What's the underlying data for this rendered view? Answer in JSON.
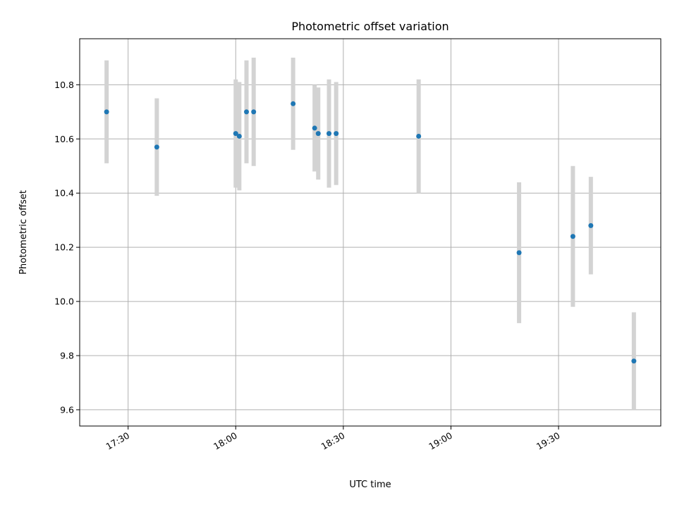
{
  "chart_data": {
    "type": "scatter",
    "title": "Photometric offset variation",
    "xlabel": "UTC time",
    "ylabel": "Photometric offset",
    "x_axis_kind": "time",
    "xlim": [
      "17:16:30",
      "19:58:30"
    ],
    "ylim": [
      9.54,
      10.97
    ],
    "x_ticks": [
      "17:30",
      "18:00",
      "18:30",
      "19:00",
      "19:30"
    ],
    "y_ticks": [
      "9.6",
      "9.8",
      "10.0",
      "10.2",
      "10.4",
      "10.6",
      "10.8"
    ],
    "grid": true,
    "error_bar_color": "#d3d3d3",
    "marker_color": "#1f77b4",
    "points": [
      {
        "t": "17:24",
        "y": 10.7,
        "err": 0.19
      },
      {
        "t": "17:38",
        "y": 10.57,
        "err": 0.18
      },
      {
        "t": "18:00",
        "y": 10.62,
        "err": 0.2
      },
      {
        "t": "18:01",
        "y": 10.61,
        "err": 0.2
      },
      {
        "t": "18:03",
        "y": 10.7,
        "err": 0.19
      },
      {
        "t": "18:05",
        "y": 10.7,
        "err": 0.2
      },
      {
        "t": "18:16",
        "y": 10.73,
        "err": 0.17
      },
      {
        "t": "18:22",
        "y": 10.64,
        "err": 0.16
      },
      {
        "t": "18:23",
        "y": 10.62,
        "err": 0.17
      },
      {
        "t": "18:26",
        "y": 10.62,
        "err": 0.2
      },
      {
        "t": "18:28",
        "y": 10.62,
        "err": 0.19
      },
      {
        "t": "18:51",
        "y": 10.61,
        "err": 0.21
      },
      {
        "t": "19:19",
        "y": 10.18,
        "err": 0.26
      },
      {
        "t": "19:34",
        "y": 10.24,
        "err": 0.26
      },
      {
        "t": "19:39",
        "y": 10.28,
        "err": 0.18
      },
      {
        "t": "19:51",
        "y": 9.78,
        "err": 0.18
      }
    ]
  }
}
